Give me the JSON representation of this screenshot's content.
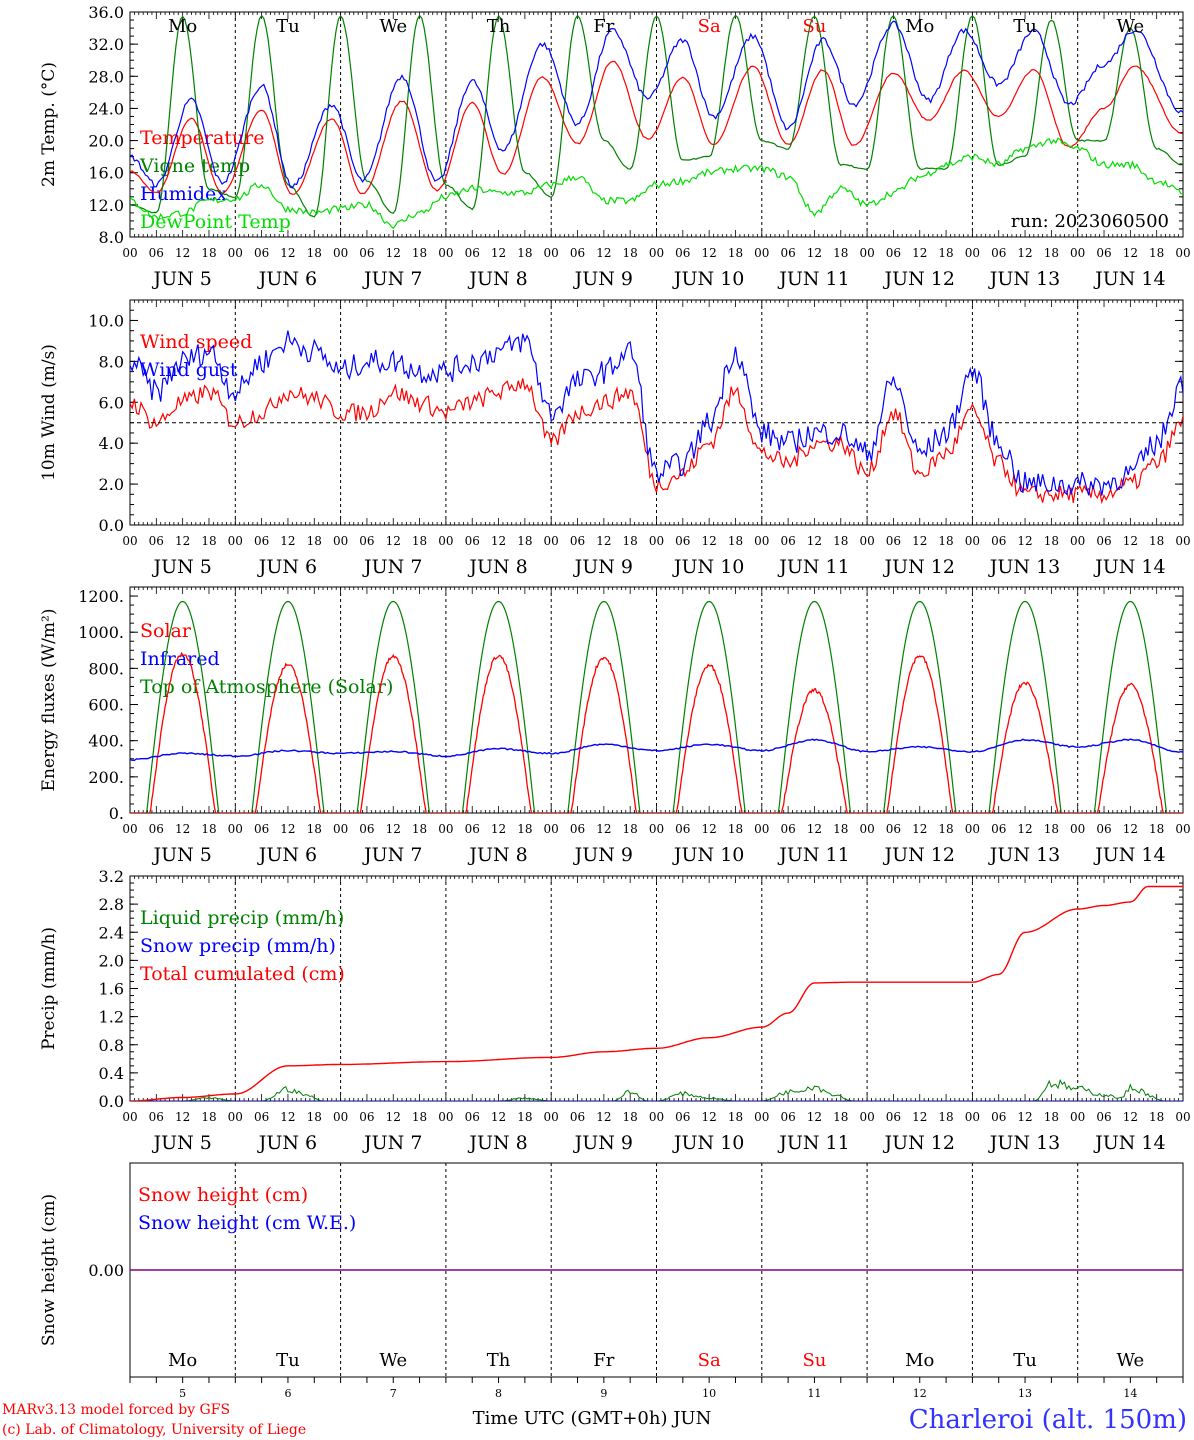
{
  "days": [
    "JUN 5",
    "JUN 6",
    "JUN 7",
    "JUN 8",
    "JUN 9",
    "JUN 10",
    "JUN 11",
    "JUN 12",
    "JUN 13",
    "JUN 14"
  ],
  "weekdays": [
    "Mo",
    "Tu",
    "We",
    "Th",
    "Fr",
    "Sa",
    "Su",
    "Mo",
    "Tu",
    "We"
  ],
  "weekend_flags": [
    false,
    false,
    false,
    false,
    false,
    true,
    true,
    false,
    false,
    false
  ],
  "hour_ticks": [
    "00",
    "06",
    "12",
    "18"
  ],
  "end_tick": "00",
  "day_numbers": [
    "5",
    "6",
    "7",
    "8",
    "9",
    "10",
    "11",
    "12",
    "13",
    "14"
  ],
  "x_label": "Time UTC (GMT+0h) JUN",
  "location": "Charleroi (alt. 150m)",
  "credit_line1": "MARv3.13 model forced by GFS",
  "credit_line2": "(c) Lab. of Climatology, University of Liege",
  "colors": {
    "red": "#ff0000",
    "green": "#008000",
    "blue": "#0000ff",
    "lightgreen": "#00dd00",
    "purple": "#800080",
    "weekend": "#ff0000"
  },
  "chart_data": [
    {
      "type": "line",
      "title": "",
      "ylabel": "2m Temp. (°C)",
      "ylim": [
        8,
        36
      ],
      "yticks": [
        "8.0",
        "12.0",
        "16.0",
        "20.0",
        "24.0",
        "28.0",
        "32.0",
        "36.0"
      ],
      "annotation": "run: 2023060500",
      "x_unit": "hours since JUN 5 00 UTC",
      "series": [
        {
          "name": "Temperature",
          "color": "#ff0000",
          "x": [
            0,
            6,
            14,
            21,
            30,
            37,
            46,
            53,
            62,
            70,
            78,
            85,
            94,
            102,
            110,
            118,
            126,
            133,
            142,
            150,
            158,
            165,
            174,
            182,
            190,
            198,
            206,
            214,
            222,
            229,
            240
          ],
          "y": [
            16.2,
            13.5,
            22.7,
            13.5,
            23.8,
            13.3,
            22.7,
            13.4,
            24.9,
            13.8,
            24.7,
            15.8,
            27.9,
            19.6,
            29.9,
            20.2,
            27.9,
            19.5,
            29.2,
            19.5,
            28.8,
            19.4,
            28.4,
            22.5,
            28.7,
            23,
            28.8,
            19.2,
            24,
            29.2,
            20.8
          ]
        },
        {
          "name": "Vigne temp",
          "color": "#008000",
          "x": [
            0,
            6,
            12,
            18,
            24,
            30,
            36,
            42,
            48,
            54,
            60,
            66,
            72,
            78,
            84,
            90,
            96,
            102,
            108,
            114,
            120,
            126,
            132,
            138,
            144,
            150,
            156,
            162,
            168,
            174,
            180,
            186,
            192,
            198,
            204,
            210,
            216,
            222,
            228,
            234,
            240
          ],
          "y": [
            12,
            11,
            35.5,
            14,
            13,
            35.5,
            14.5,
            10.5,
            35.5,
            15,
            11,
            35.5,
            14.5,
            11.5,
            35.5,
            16,
            13,
            35.5,
            20,
            16.5,
            35.5,
            17.5,
            18,
            35.5,
            20,
            19,
            35.5,
            17,
            16.5,
            35.5,
            16.5,
            16.5,
            35.5,
            17,
            18,
            35,
            20,
            20,
            34,
            19,
            17
          ]
        },
        {
          "name": "Humidex",
          "color": "#0000ff",
          "x": [
            0,
            6,
            14,
            21,
            30,
            37,
            46,
            53,
            62,
            70,
            78,
            85,
            94,
            102,
            110,
            118,
            126,
            133,
            142,
            150,
            158,
            165,
            174,
            182,
            190,
            198,
            206,
            214,
            222,
            229,
            240
          ],
          "y": [
            18,
            14.5,
            25,
            14.8,
            26.8,
            14.3,
            24.5,
            15,
            28,
            14.8,
            27.4,
            18.8,
            32,
            22.1,
            33.7,
            25.3,
            32.5,
            23,
            33,
            21.5,
            32.5,
            24.5,
            34.5,
            25,
            33.7,
            27,
            33.6,
            24.5,
            29.5,
            33.8,
            23.5
          ]
        },
        {
          "name": "DewPoint Temp",
          "color": "#00dd00",
          "x": [
            0,
            6,
            12,
            18,
            24,
            30,
            36,
            42,
            48,
            54,
            60,
            66,
            72,
            78,
            84,
            90,
            96,
            102,
            108,
            114,
            120,
            126,
            132,
            138,
            144,
            150,
            156,
            162,
            168,
            174,
            180,
            186,
            192,
            198,
            204,
            210,
            216,
            222,
            228,
            234,
            240
          ],
          "y": [
            12.5,
            10.5,
            11,
            12.5,
            12.8,
            14.5,
            11.5,
            11,
            11.5,
            12,
            9.5,
            11,
            13,
            14,
            13.5,
            13.5,
            14.5,
            15.5,
            12.5,
            12.5,
            14.5,
            15,
            16,
            16.5,
            16.5,
            15.5,
            11,
            14,
            12,
            13.5,
            15.5,
            17,
            18,
            17,
            19,
            20,
            19,
            17,
            17,
            15,
            13.5
          ]
        }
      ]
    },
    {
      "type": "line",
      "title": "",
      "ylabel": "10m Wind (m/s)",
      "ylim": [
        0,
        11
      ],
      "yticks": [
        "0.0",
        "2.0",
        "4.0",
        "6.0",
        "8.0",
        "10.0"
      ],
      "reference_line": 5,
      "x_unit": "hours since JUN 5 00 UTC",
      "series": [
        {
          "name": "Wind speed",
          "color": "#ff0000",
          "x": [
            0,
            6,
            12,
            18,
            24,
            30,
            36,
            42,
            48,
            54,
            60,
            66,
            72,
            78,
            84,
            90,
            96,
            102,
            108,
            114,
            120,
            126,
            132,
            138,
            144,
            150,
            156,
            162,
            168,
            174,
            180,
            186,
            192,
            198,
            204,
            210,
            216,
            222,
            228,
            234,
            240
          ],
          "y": [
            6,
            5,
            6,
            6.5,
            5,
            5.5,
            6.5,
            6.2,
            5.5,
            5.5,
            6.5,
            6,
            5.5,
            6,
            6.5,
            7,
            4,
            5.5,
            6,
            6.5,
            2,
            2.5,
            4,
            6.5,
            3.5,
            3,
            4,
            4,
            2.5,
            5.5,
            2.5,
            3.5,
            5.5,
            3,
            1.5,
            1.5,
            1.5,
            1.5,
            2,
            3,
            5
          ]
        },
        {
          "name": "Wind gust",
          "color": "#0000ff",
          "x": [
            0,
            6,
            12,
            18,
            24,
            30,
            36,
            42,
            48,
            54,
            60,
            66,
            72,
            78,
            84,
            90,
            96,
            102,
            108,
            114,
            120,
            126,
            132,
            138,
            144,
            150,
            156,
            162,
            168,
            174,
            180,
            186,
            192,
            198,
            204,
            210,
            216,
            222,
            228,
            234,
            240
          ],
          "y": [
            8,
            6.5,
            8,
            8.5,
            6.5,
            8,
            9,
            8.5,
            7.5,
            8,
            8,
            7.5,
            7.5,
            8,
            8.5,
            9,
            5.5,
            7,
            7.5,
            8.5,
            2.5,
            3,
            5,
            8.5,
            4.5,
            4,
            4.5,
            4.5,
            3.5,
            7,
            3.5,
            4.5,
            7.5,
            4,
            2,
            2,
            2,
            2,
            2.5,
            4,
            7
          ]
        }
      ]
    },
    {
      "type": "line",
      "title": "",
      "ylabel": "Energy fluxes (W/m²)",
      "ylim": [
        0,
        1250
      ],
      "yticks": [
        "0.",
        "200.",
        "400.",
        "600.",
        "800.",
        "1000.",
        "1200."
      ],
      "x_unit": "hours since JUN 5 00 UTC",
      "series": [
        {
          "name": "Solar",
          "color": "#ff0000",
          "daily_peaks": [
            880,
            820,
            865,
            870,
            860,
            815,
            680,
            870,
            720,
            710
          ]
        },
        {
          "name": "Infrared",
          "color": "#0000ff",
          "x": [
            0,
            12,
            24,
            36,
            48,
            60,
            72,
            84,
            96,
            108,
            120,
            132,
            144,
            156,
            168,
            180,
            192,
            204,
            216,
            228,
            240
          ],
          "y": [
            295,
            330,
            315,
            345,
            330,
            340,
            315,
            355,
            330,
            380,
            345,
            380,
            345,
            405,
            340,
            365,
            340,
            405,
            365,
            405,
            335
          ]
        },
        {
          "name": "Top of Atmosphere (Solar)",
          "color": "#008000",
          "daily_peak": 1170
        }
      ]
    },
    {
      "type": "line",
      "title": "",
      "ylabel": "Precip (mm/h)",
      "ylim": [
        0,
        3.2
      ],
      "yticks": [
        "0.0",
        "0.4",
        "0.8",
        "1.2",
        "1.6",
        "2.0",
        "2.4",
        "2.8",
        "3.2"
      ],
      "x_unit": "hours since JUN 5 00 UTC",
      "series": [
        {
          "name": "Liquid precip (mm/h)",
          "color": "#008000",
          "x": [
            0,
            12,
            18,
            24,
            30,
            36,
            40,
            44,
            48,
            84,
            90,
            96,
            110,
            114,
            118,
            120,
            126,
            132,
            138,
            144,
            150,
            156,
            160,
            165,
            170,
            174,
            180,
            206,
            210,
            216,
            222,
            226,
            228,
            236,
            240
          ],
          "y": [
            0,
            0,
            0.05,
            0,
            0,
            0.2,
            0.1,
            0,
            0,
            0,
            0.05,
            0,
            0,
            0.15,
            0,
            0,
            0.12,
            0.05,
            0,
            0,
            0.15,
            0.25,
            0.12,
            0,
            0,
            0,
            0,
            0,
            0.3,
            0.2,
            0.1,
            0.05,
            0.22,
            0,
            0
          ]
        },
        {
          "name": "Snow precip (mm/h)",
          "color": "#0000ff",
          "x": [
            0,
            240
          ],
          "y": [
            0,
            0
          ]
        },
        {
          "name": "Total cumulated (cm)",
          "color": "#ff0000",
          "x": [
            0,
            12,
            24,
            36,
            48,
            72,
            96,
            108,
            120,
            132,
            144,
            150,
            156,
            165,
            192,
            198,
            204,
            216,
            222,
            228,
            232,
            240
          ],
          "y": [
            0,
            0.05,
            0.1,
            0.5,
            0.52,
            0.56,
            0.62,
            0.7,
            0.75,
            0.9,
            1.05,
            1.25,
            1.68,
            1.69,
            1.69,
            1.8,
            2.4,
            2.73,
            2.78,
            2.83,
            3.05,
            3.05
          ]
        }
      ]
    },
    {
      "type": "line",
      "title": "",
      "ylabel": "Snow height (cm)",
      "ylim": [
        -1,
        1
      ],
      "yticks": [
        "0.00"
      ],
      "x_unit": "hours since JUN 5 00 UTC",
      "series": [
        {
          "name": "Snow height (cm)",
          "color": "#ff0000",
          "x": [
            0,
            240
          ],
          "y": [
            0,
            0
          ]
        },
        {
          "name": "Snow height (cm W.E.)",
          "color": "#0000ff",
          "x": [
            0,
            240
          ],
          "y": [
            0,
            0
          ]
        }
      ]
    }
  ]
}
